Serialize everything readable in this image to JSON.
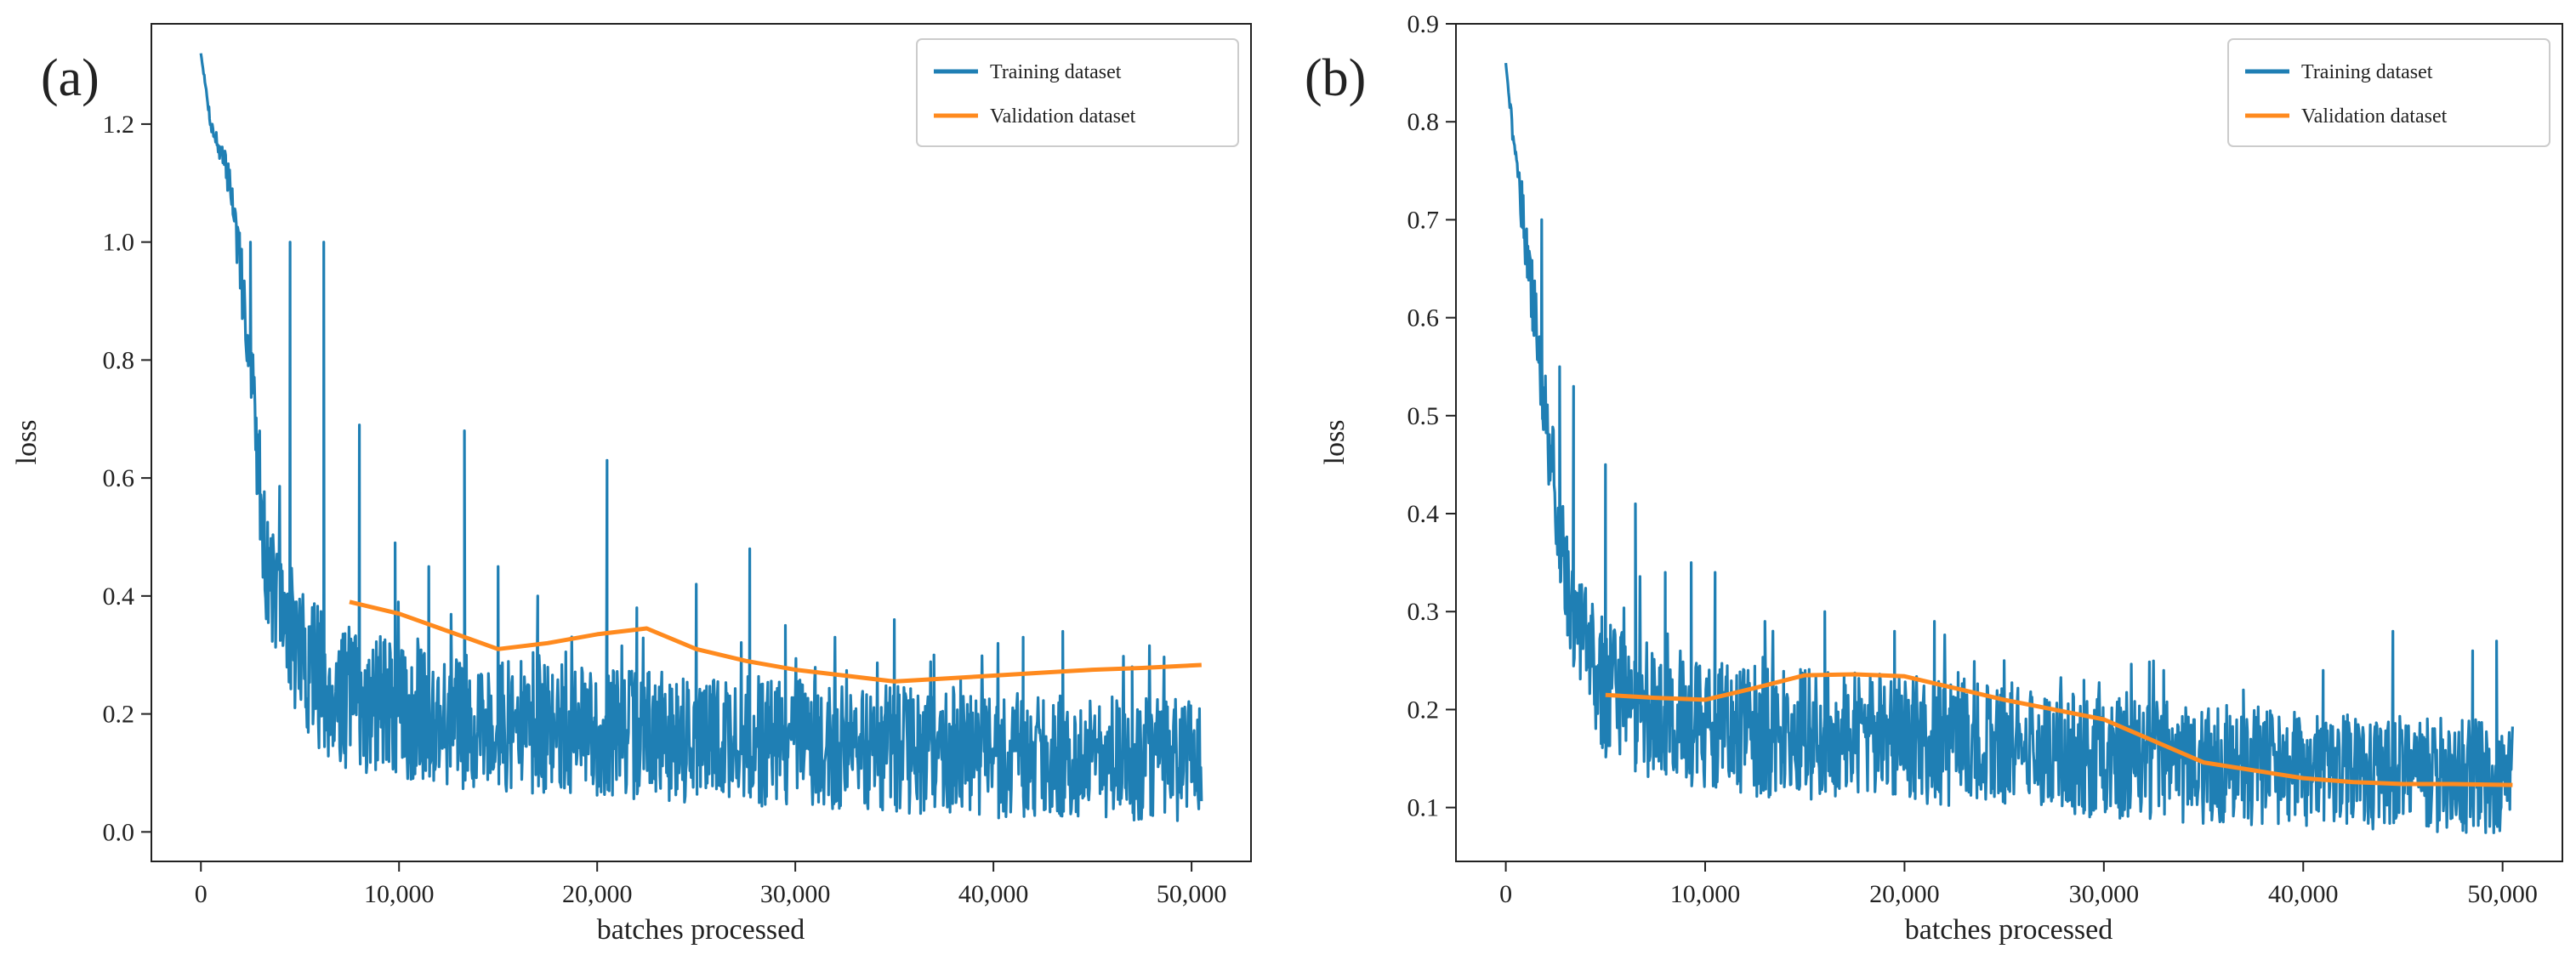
{
  "figure": {
    "description_panels": [
      "(a)",
      "(b)"
    ]
  },
  "colors": {
    "training": "#1f7fb4",
    "validation": "#ff8a1e",
    "axes": "#222222"
  },
  "chart_data": [
    {
      "type": "line",
      "panel_label": "(a)",
      "title": "",
      "xlabel": "batches processed",
      "ylabel": "loss",
      "xlim": [
        -2500,
        53000
      ],
      "ylim": [
        -0.05,
        1.37
      ],
      "xticks": [
        0,
        10000,
        20000,
        30000,
        40000,
        50000
      ],
      "xtick_labels": [
        "0",
        "10,000",
        "20,000",
        "30,000",
        "40,000",
        "50,000"
      ],
      "yticks": [
        0.0,
        0.2,
        0.4,
        0.6,
        0.8,
        1.0,
        1.2
      ],
      "ytick_labels": [
        "0.0",
        "0.2",
        "0.4",
        "0.6",
        "0.8",
        "1.0",
        "1.2"
      ],
      "legend": {
        "position": "top-right",
        "entries": [
          "Training dataset",
          "Validation dataset"
        ]
      },
      "series": [
        {
          "name": "Training dataset",
          "kind": "noisy",
          "x_start": 0,
          "x_end": 50500,
          "samples": 1500,
          "seed": 7,
          "envelope": [
            [
              0,
              1.32
            ],
            [
              500,
              1.2
            ],
            [
              1500,
              1.1
            ],
            [
              2500,
              0.8
            ],
            [
              3300,
              0.45
            ],
            [
              4200,
              0.36
            ],
            [
              5000,
              0.3
            ],
            [
              6000,
              0.26
            ],
            [
              7000,
              0.23
            ],
            [
              10000,
              0.2
            ],
            [
              15000,
              0.18
            ],
            [
              20000,
              0.17
            ],
            [
              30000,
              0.15
            ],
            [
              40000,
              0.13
            ],
            [
              50500,
              0.12
            ]
          ],
          "noise": [
            [
              0,
              0.0
            ],
            [
              1500,
              0.03
            ],
            [
              3000,
              0.08
            ],
            [
              6000,
              0.11
            ],
            [
              10000,
              0.1
            ],
            [
              50500,
              0.09
            ]
          ],
          "floor": 0.01,
          "spikes": [
            [
              2500,
              1.0
            ],
            [
              4500,
              1.0
            ],
            [
              6200,
              1.0
            ],
            [
              8000,
              0.69
            ],
            [
              9800,
              0.49
            ],
            [
              11500,
              0.45
            ],
            [
              13300,
              0.68
            ],
            [
              15000,
              0.45
            ],
            [
              17000,
              0.4
            ],
            [
              20500,
              0.63
            ],
            [
              22000,
              0.38
            ],
            [
              25000,
              0.42
            ],
            [
              27700,
              0.48
            ],
            [
              29500,
              0.35
            ],
            [
              32000,
              0.33
            ],
            [
              35000,
              0.36
            ],
            [
              37000,
              0.3
            ],
            [
              41500,
              0.33
            ],
            [
              43500,
              0.34
            ],
            [
              47000,
              0.28
            ]
          ]
        },
        {
          "name": "Validation dataset",
          "kind": "line",
          "x": [
            7500,
            10000,
            12500,
            15000,
            17500,
            20000,
            22500,
            25000,
            27500,
            30000,
            32500,
            35000,
            37500,
            40000,
            42500,
            45000,
            47500,
            50500
          ],
          "y": [
            0.39,
            0.37,
            0.34,
            0.31,
            0.32,
            0.335,
            0.345,
            0.31,
            0.29,
            0.275,
            0.265,
            0.255,
            0.26,
            0.265,
            0.27,
            0.275,
            0.278,
            0.283
          ]
        }
      ]
    },
    {
      "type": "line",
      "panel_label": "(b)",
      "title": "",
      "xlabel": "batches processed",
      "ylabel": "loss",
      "xlim": [
        -2500,
        53000
      ],
      "ylim": [
        0.045,
        0.9
      ],
      "xticks": [
        0,
        10000,
        20000,
        30000,
        40000,
        50000
      ],
      "xtick_labels": [
        "0",
        "10,000",
        "20,000",
        "30,000",
        "40,000",
        "50,000"
      ],
      "yticks": [
        0.1,
        0.2,
        0.3,
        0.4,
        0.5,
        0.6,
        0.7,
        0.8,
        0.9
      ],
      "ytick_labels": [
        "0.1",
        "0.2",
        "0.3",
        "0.4",
        "0.5",
        "0.6",
        "0.7",
        "0.8",
        "0.9"
      ],
      "legend": {
        "position": "top-right",
        "entries": [
          "Training dataset",
          "Validation dataset"
        ]
      },
      "series": [
        {
          "name": "Training dataset",
          "kind": "noisy",
          "x_start": 0,
          "x_end": 50500,
          "samples": 1500,
          "seed": 21,
          "envelope": [
            [
              0,
              0.86
            ],
            [
              400,
              0.78
            ],
            [
              1200,
              0.65
            ],
            [
              2000,
              0.5
            ],
            [
              3000,
              0.33
            ],
            [
              4000,
              0.27
            ],
            [
              5000,
              0.22
            ],
            [
              7000,
              0.2
            ],
            [
              10000,
              0.18
            ],
            [
              20000,
              0.17
            ],
            [
              30000,
              0.15
            ],
            [
              40000,
              0.14
            ],
            [
              50500,
              0.13
            ]
          ],
          "noise": [
            [
              0,
              0.0
            ],
            [
              1000,
              0.03
            ],
            [
              2500,
              0.05
            ],
            [
              5000,
              0.06
            ],
            [
              50500,
              0.05
            ]
          ],
          "floor": 0.065,
          "spikes": [
            [
              1800,
              0.7
            ],
            [
              2700,
              0.55
            ],
            [
              3400,
              0.53
            ],
            [
              5000,
              0.45
            ],
            [
              6500,
              0.41
            ],
            [
              8000,
              0.34
            ],
            [
              9300,
              0.35
            ],
            [
              10500,
              0.34
            ],
            [
              13000,
              0.29
            ],
            [
              16000,
              0.3
            ],
            [
              19500,
              0.28
            ],
            [
              21500,
              0.29
            ],
            [
              25000,
              0.25
            ],
            [
              29000,
              0.23
            ],
            [
              33000,
              0.24
            ],
            [
              37000,
              0.22
            ],
            [
              41000,
              0.24
            ],
            [
              44500,
              0.28
            ],
            [
              48500,
              0.26
            ],
            [
              49700,
              0.27
            ]
          ]
        },
        {
          "name": "Validation dataset",
          "kind": "line",
          "x": [
            5000,
            7500,
            10000,
            12500,
            15000,
            17500,
            20000,
            22500,
            25000,
            27500,
            30000,
            32500,
            35000,
            37500,
            40000,
            42500,
            45000,
            47500,
            50500
          ],
          "y": [
            0.215,
            0.212,
            0.21,
            0.222,
            0.235,
            0.236,
            0.234,
            0.222,
            0.21,
            0.2,
            0.19,
            0.168,
            0.146,
            0.138,
            0.13,
            0.126,
            0.124,
            0.124,
            0.123
          ]
        }
      ]
    }
  ]
}
